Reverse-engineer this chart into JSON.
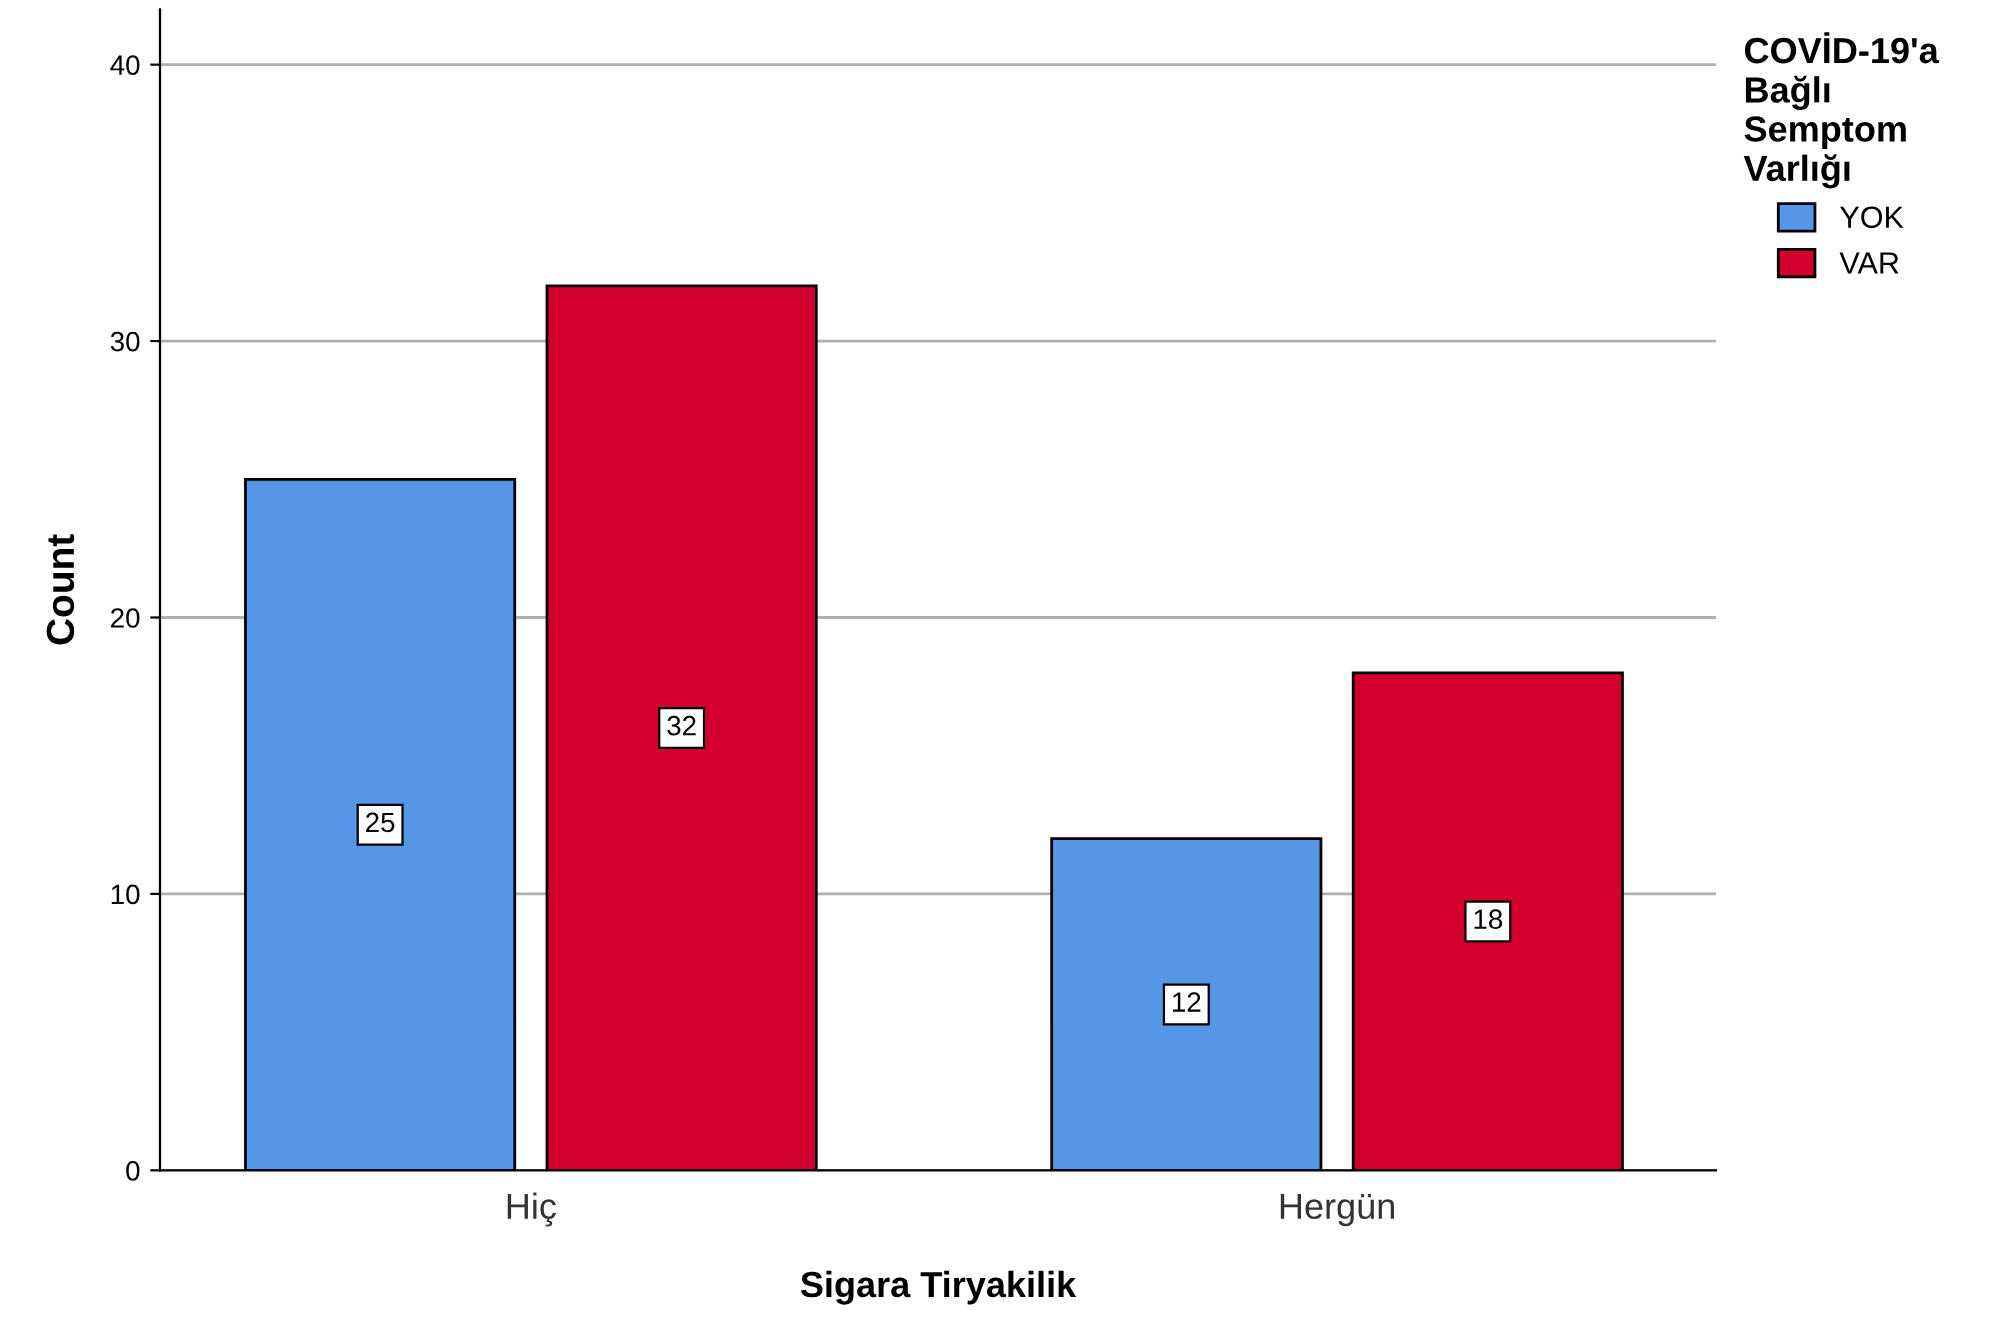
{
  "chart_data": {
    "type": "bar",
    "xlabel": "Sigara Tiryakilik",
    "ylabel": "Count",
    "legend_title": "COVİD-19'a Bağlı Semptom Varlığı",
    "categories": [
      "Hiç",
      "Hergün"
    ],
    "series": [
      {
        "name": "YOK",
        "color": "#5596e6",
        "values": [
          25,
          12
        ]
      },
      {
        "name": "VAR",
        "color": "#d1002f",
        "values": [
          32,
          18
        ]
      }
    ],
    "ylim": [
      0,
      42
    ],
    "yticks": [
      0,
      10,
      20,
      30,
      40
    ],
    "grid": "y",
    "legend": "top right",
    "data_labels": true
  }
}
